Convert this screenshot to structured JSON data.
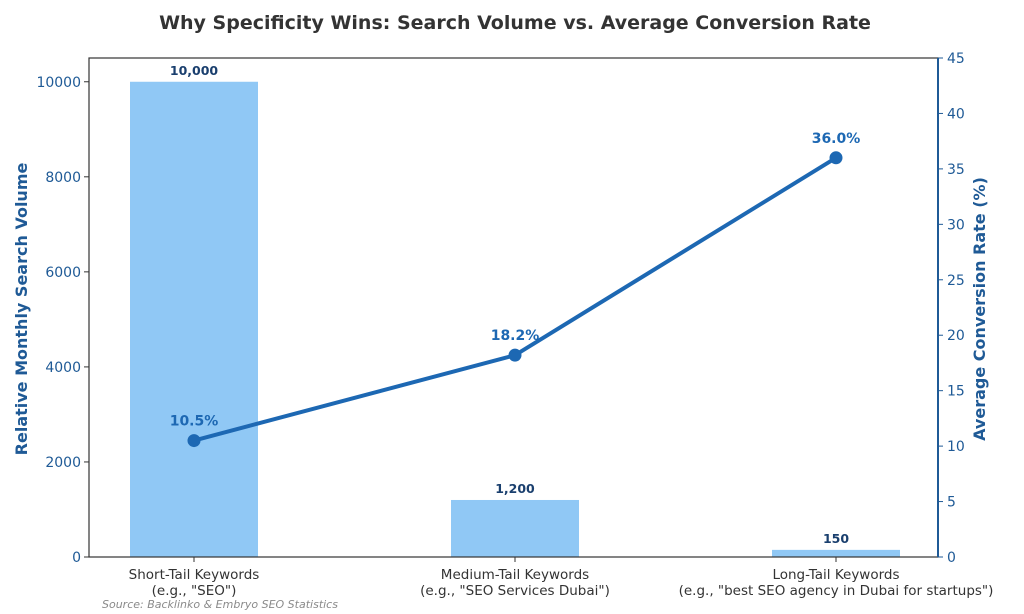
{
  "chart_data": {
    "type": "bar",
    "title": "Why Specificity Wins: Search Volume vs. Average Conversion Rate",
    "categories": [
      [
        "Short-Tail Keywords",
        "(e.g., \"SEO\")"
      ],
      [
        "Medium-Tail Keywords",
        "(e.g., \"SEO Services Dubai\")"
      ],
      [
        "Long-Tail Keywords",
        "(e.g., \"best SEO agency in Dubai for startups\")"
      ]
    ],
    "series": [
      {
        "name": "Relative Monthly Search Volume",
        "type": "bar",
        "axis": "left",
        "values": [
          10000,
          1200,
          150
        ],
        "labels": [
          "10,000",
          "1,200",
          "150"
        ],
        "color": "#90c8f5"
      },
      {
        "name": "Average Conversion Rate (%)",
        "type": "line",
        "axis": "right",
        "values": [
          10.5,
          18.2,
          36.0
        ],
        "labels": [
          "10.5%",
          "18.2%",
          "36.0%"
        ],
        "color": "#1d68b3"
      }
    ],
    "ylabel": "Relative Monthly Search Volume",
    "ylabel_right": "Average Conversion Rate (%)",
    "ylim": [
      0,
      10500
    ],
    "ylim_right": [
      0,
      45
    ],
    "yticks": [
      0,
      2000,
      4000,
      6000,
      8000,
      10000
    ],
    "yticks_right": [
      0,
      5,
      10,
      15,
      20,
      25,
      30,
      35,
      40,
      45
    ],
    "axis_color": "#1f5a96",
    "grid": false,
    "source": "Source: Backlinko & Embryo SEO Statistics"
  }
}
